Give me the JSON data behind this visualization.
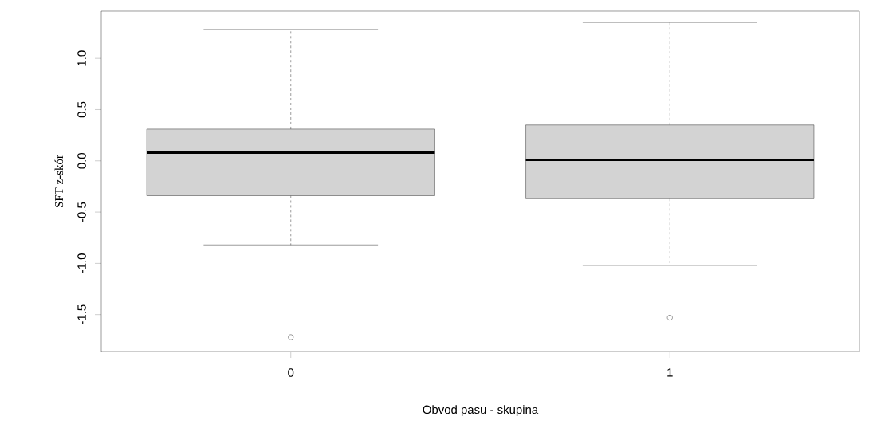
{
  "chart_data": {
    "type": "box",
    "categories": [
      "0",
      "1"
    ],
    "xlabel": "Obvod pasu - skupina",
    "ylabel": "SFT z-skór",
    "color": "#d3d3d3",
    "boxes": [
      {
        "low": -0.82,
        "q1": -0.34,
        "median": 0.08,
        "q3": 0.31,
        "high": 1.28,
        "outliers": [
          -1.72
        ]
      },
      {
        "low": -1.02,
        "q1": -0.37,
        "median": 0.01,
        "q3": 0.35,
        "high": 1.35,
        "outliers": [
          -1.53
        ]
      }
    ],
    "ylim": [
      -1.86,
      1.46
    ],
    "yticks": [
      {
        "value": -1.5,
        "label": "-1.5"
      },
      {
        "value": -1.0,
        "label": "-1.0"
      },
      {
        "value": -0.5,
        "label": "-0.5"
      },
      {
        "value": 0.0,
        "label": "0.0"
      },
      {
        "value": 0.5,
        "label": "0.5"
      },
      {
        "value": 1.0,
        "label": "1.0"
      }
    ]
  }
}
